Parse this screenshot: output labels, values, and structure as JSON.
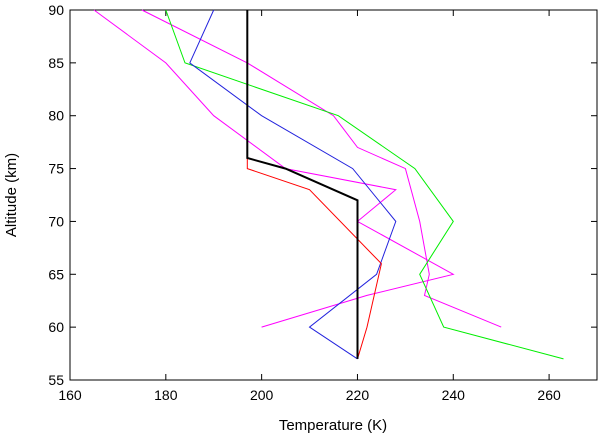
{
  "chart_data": {
    "type": "line",
    "title": "",
    "xlabel": "Temperature (K)",
    "ylabel": "Altitude (km)",
    "xlim": [
      160,
      270
    ],
    "ylim": [
      55,
      90
    ],
    "xticks": [
      160,
      180,
      200,
      220,
      240,
      260
    ],
    "yticks": [
      55,
      60,
      65,
      70,
      75,
      80,
      85,
      90
    ],
    "grid": false,
    "legend": "none",
    "series": [
      {
        "color": "#ff00ff",
        "width": 1,
        "points": [
          [
            165,
            90
          ],
          [
            180,
            85
          ],
          [
            190,
            80
          ],
          [
            205,
            75
          ],
          [
            228,
            73
          ],
          [
            220,
            70
          ],
          [
            240,
            65
          ],
          [
            222,
            63
          ],
          [
            200,
            60
          ]
        ]
      },
      {
        "color": "#ff00ff",
        "width": 1,
        "points": [
          [
            175,
            90
          ],
          [
            197,
            85
          ],
          [
            215,
            80
          ],
          [
            220,
            77
          ],
          [
            230,
            75
          ],
          [
            233,
            70
          ],
          [
            235,
            65
          ],
          [
            234,
            63
          ],
          [
            250,
            60
          ]
        ]
      },
      {
        "color": "#00ee00",
        "width": 1,
        "points": [
          [
            180,
            90
          ],
          [
            184,
            85
          ],
          [
            216,
            80
          ],
          [
            232,
            75
          ],
          [
            240,
            70
          ],
          [
            233,
            65
          ],
          [
            238,
            60
          ],
          [
            263,
            57
          ]
        ]
      },
      {
        "color": "#2222dd",
        "width": 1,
        "points": [
          [
            190,
            90
          ],
          [
            185,
            85
          ],
          [
            200,
            80
          ],
          [
            219,
            75
          ],
          [
            228,
            70
          ],
          [
            224,
            65
          ],
          [
            210,
            60
          ],
          [
            220,
            57
          ]
        ]
      },
      {
        "color": "#ff0000",
        "width": 1,
        "points": [
          [
            197,
            90
          ],
          [
            197,
            75
          ],
          [
            210,
            73
          ],
          [
            225,
            66
          ],
          [
            222,
            60
          ],
          [
            220,
            57
          ]
        ]
      },
      {
        "color": "#000000",
        "width": 2,
        "points": [
          [
            197,
            90
          ],
          [
            197,
            76
          ],
          [
            205,
            75
          ],
          [
            220,
            72
          ],
          [
            220,
            57
          ]
        ]
      }
    ]
  }
}
